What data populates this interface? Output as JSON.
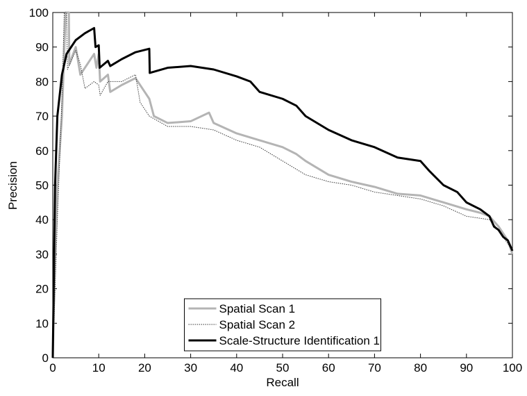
{
  "chart_data": {
    "type": "line",
    "xlabel": "Recall",
    "ylabel": "Precision",
    "xlim": [
      0,
      100
    ],
    "ylim": [
      0,
      100
    ],
    "xticks": [
      0,
      10,
      20,
      30,
      40,
      50,
      60,
      70,
      80,
      90,
      100
    ],
    "yticks": [
      0,
      10,
      20,
      30,
      40,
      50,
      60,
      70,
      80,
      90,
      100
    ],
    "grid": false,
    "legend": "lower center",
    "series": [
      {
        "name": "Spatial Scan 1",
        "color": "#b4b4b4",
        "dash": "solid",
        "width": 3,
        "x": [
          0,
          0.5,
          1,
          2,
          2.8,
          3.5,
          3.6,
          5,
          6,
          8,
          9,
          9.5,
          10,
          10.3,
          12,
          12.5,
          15,
          18,
          20,
          21,
          22,
          25,
          30,
          34,
          35,
          40,
          45,
          50,
          53,
          55,
          60,
          65,
          70,
          75,
          80,
          85,
          90,
          93,
          95,
          97,
          99,
          100
        ],
        "values": [
          0,
          30,
          50,
          70,
          100,
          100,
          85,
          90,
          82,
          86,
          88,
          84,
          88,
          80,
          82,
          77,
          79,
          81,
          77,
          75,
          70,
          68,
          68.5,
          71,
          68,
          65,
          63,
          61,
          59,
          57,
          53,
          51,
          49.5,
          47.5,
          47,
          45,
          43,
          42,
          41,
          38,
          34,
          30
        ]
      },
      {
        "name": "Spatial Scan 2",
        "color": "#333333",
        "dash": "dotted",
        "width": 1,
        "x": [
          0,
          1,
          2,
          2.5,
          3,
          3.2,
          5,
          6,
          7,
          9,
          10,
          10.3,
          12,
          15,
          18,
          19,
          21,
          25,
          30,
          35,
          40,
          45,
          50,
          55,
          60,
          65,
          70,
          75,
          80,
          85,
          90,
          95,
          97,
          99,
          100
        ],
        "values": [
          0,
          40,
          75,
          100,
          100,
          83.5,
          89,
          85,
          78,
          80,
          79,
          76,
          80,
          80,
          82,
          74,
          70,
          67,
          67,
          66,
          63,
          61,
          57,
          53,
          51,
          50,
          48,
          47,
          46,
          44,
          41,
          40,
          37,
          33,
          31
        ]
      },
      {
        "name": "Scale-Structure Identification 1",
        "color": "#000000",
        "dash": "solid",
        "width": 3,
        "x": [
          0,
          0.5,
          1,
          2,
          3,
          5,
          7,
          9,
          9.3,
          10,
          10.2,
          12,
          12.5,
          15,
          18,
          21,
          21.1,
          25,
          30,
          35,
          40,
          43,
          45,
          50,
          53,
          55,
          60,
          65,
          70,
          75,
          80,
          82,
          85,
          88,
          90,
          93,
          95,
          96,
          97,
          98,
          99,
          100
        ],
        "values": [
          0,
          50,
          70,
          82,
          88,
          92,
          94,
          95.5,
          90,
          90.5,
          84,
          86,
          84.5,
          86.5,
          88.5,
          89.5,
          82.5,
          84,
          84.5,
          83.5,
          81.5,
          80,
          77,
          75,
          73,
          70,
          66,
          63,
          61,
          58,
          57,
          54,
          50,
          48,
          45,
          43,
          41,
          38,
          37,
          35,
          34,
          31
        ]
      }
    ]
  }
}
